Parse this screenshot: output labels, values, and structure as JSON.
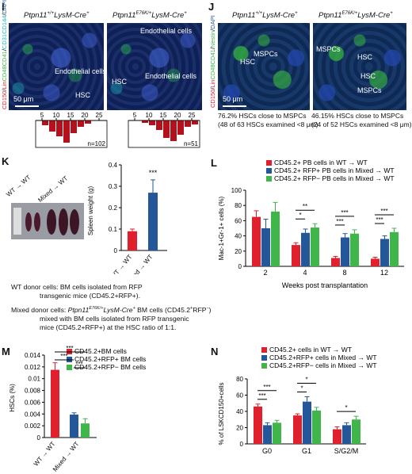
{
  "colors": {
    "red": "#e0202c",
    "blue": "#23579a",
    "green": "#3fb54a",
    "dark_red": "#b3121d"
  },
  "panel_I": {
    "label": "I",
    "title_wt": "Ptpn11+/+LysM-Cre+",
    "title_mut": "Ptpn11E76K/+LysM-Cre+",
    "stain_label": "CD150/LinCD48CD41/CD31CD144/DAPI",
    "wt_labels": {
      "endo": "Endothelial cells",
      "hsc": "HSC"
    },
    "mut_labels": {
      "endo_top": "Endothelial cells",
      "hsc": "HSC",
      "endo_bottom": "Endothelial cells"
    },
    "scale": "50 μm",
    "hist_ticks_wt": [
      "5",
      "10",
      "15",
      "20",
      "25"
    ],
    "hist_ticks_mut": [
      "5",
      "10",
      "15",
      "20",
      "25"
    ],
    "n_wt": "n=102",
    "n_mut": "n=51"
  },
  "panel_J": {
    "label": "J",
    "title_wt": "Ptpn11+/+LysM-Cre+",
    "title_mut": "Ptpn11E76K/+LysM-Cre+",
    "stain_label": "CD150/LinCD48CD41/Nestin/DAPI",
    "wt_labels": {
      "hsc": "HSC",
      "mspcs": "MSPCs"
    },
    "mut_labels": {
      "mspcs_top": "MSPCs",
      "hsc1": "HSC",
      "hsc2": "HSC",
      "mspcs_bottom": "MSPCs"
    },
    "scale": "50 μm",
    "note_wt_1": "76.2% HSCs close to MSPCs",
    "note_wt_2": "(48 of 63 HSCs examined <8 μm)",
    "note_mut_1": "46.15% HSCs close to MSPCs",
    "note_mut_2": "(24 of 52 HSCs examined <8 μm)"
  },
  "panel_K": {
    "label": "K",
    "photo_label_1": "WT → WT",
    "photo_label_2": "Mixed → WT",
    "donor_text_1": "WT donor cells: BM cells isolated from RFP",
    "donor_text_2": "transgenic mice (CD45.2+RFP+).",
    "donor_text_3": "Mixed donor cells: Ptpn11E76K/+LysM-Cre+ BM cells (CD45.2+RFP−)",
    "donor_text_4": "mixed with BM cells isolated from RFP transgenic",
    "donor_text_5": "mice (CD45.2+RFP+) at the HSC ratio of 1:1."
  },
  "panel_L": {
    "label": "L"
  },
  "panel_M": {
    "label": "M"
  },
  "panel_N": {
    "label": "N"
  },
  "chart_data": [
    {
      "id": "K",
      "type": "bar",
      "categories": [
        "WT → WT",
        "Mixed → WT"
      ],
      "values": [
        0.09,
        0.27
      ],
      "errors": [
        0.01,
        0.06
      ],
      "colors": [
        "#e0202c",
        "#23579a"
      ],
      "ylabel": "Spleen weight (g)",
      "ylim": [
        0,
        0.4
      ],
      "yticks": [
        "0",
        "0.1",
        "0.2",
        "0.3",
        "0.4"
      ],
      "annotation": "***"
    },
    {
      "id": "L",
      "type": "bar",
      "categories": [
        "2",
        "4",
        "8",
        "12"
      ],
      "series": [
        {
          "name": "CD45.2+ PB cells in WT → WT",
          "color": "#e0202c",
          "values": [
            65,
            28,
            11,
            10
          ],
          "errors": [
            8,
            3,
            2,
            2
          ]
        },
        {
          "name": "CD45.2+ RFP+ PB cells in Mixed → WT",
          "color": "#23579a",
          "values": [
            50,
            44,
            38,
            36
          ],
          "errors": [
            12,
            5,
            5,
            4
          ]
        },
        {
          "name": "CD45.2+ RFP− PB cells in Mixed → WT",
          "color": "#3fb54a",
          "values": [
            72,
            51,
            43,
            45
          ],
          "errors": [
            12,
            5,
            5,
            5
          ]
        }
      ],
      "xlabel": "Weeks post transplantation",
      "ylabel": "Mac-1+Gr-1+ cells (%)",
      "ylim": [
        0,
        100
      ],
      "yticks": [
        "0",
        "20",
        "40",
        "60",
        "80",
        "100"
      ],
      "significance": [
        {
          "group": 1,
          "marks": [
            "*",
            "**"
          ]
        },
        {
          "group": 2,
          "marks": [
            "***",
            "***"
          ]
        },
        {
          "group": 3,
          "marks": [
            "***",
            "***"
          ]
        }
      ]
    },
    {
      "id": "M",
      "type": "bar",
      "categories": [
        "WT → WT",
        "Mixed → WT"
      ],
      "series": [
        {
          "name": "CD45.2+BM cells",
          "color": "#e0202c",
          "values": [
            0.0115,
            null
          ],
          "errors": [
            0.0012,
            null
          ]
        },
        {
          "name": "CD45.2+RFP+ BM cells",
          "color": "#23579a",
          "values": [
            null,
            0.0039
          ],
          "errors": [
            null,
            0.0003
          ]
        },
        {
          "name": "CD45.2+RFP− BM cells",
          "color": "#3fb54a",
          "values": [
            null,
            0.0024
          ],
          "errors": [
            null,
            0.0008
          ]
        }
      ],
      "ylabel": "HSCs (%)",
      "ylim": [
        0,
        0.014
      ],
      "yticks": [
        "0",
        "0.002",
        "0.004",
        "0.006",
        "0.008",
        "0.01",
        "0.012",
        "0.014"
      ],
      "significance": [
        "***",
        "***",
        "***"
      ]
    },
    {
      "id": "N",
      "type": "bar",
      "categories": [
        "G0",
        "G1",
        "S/G2/M"
      ],
      "series": [
        {
          "name": "CD45.2+ cells in WT → WT",
          "color": "#e0202c",
          "values": [
            46,
            35,
            18
          ],
          "errors": [
            3,
            2,
            3
          ]
        },
        {
          "name": "CD45.2+RFP+ cells in Mixed → WT",
          "color": "#23579a",
          "values": [
            23,
            52,
            23
          ],
          "errors": [
            3,
            6,
            3
          ]
        },
        {
          "name": "CD45.2+RFP− cells in Mixed → WT",
          "color": "#3fb54a",
          "values": [
            26,
            41,
            30
          ],
          "errors": [
            3,
            4,
            4
          ]
        }
      ],
      "ylabel": "% of LSKCD150+cells",
      "ylim": [
        0,
        80
      ],
      "yticks": [
        "0",
        "20",
        "40",
        "60",
        "80"
      ],
      "significance": [
        {
          "group": 0,
          "marks": [
            "***",
            "***"
          ]
        },
        {
          "group": 1,
          "marks": [
            "*",
            "*"
          ]
        },
        {
          "group": 2,
          "marks": [
            "*"
          ]
        }
      ]
    }
  ]
}
